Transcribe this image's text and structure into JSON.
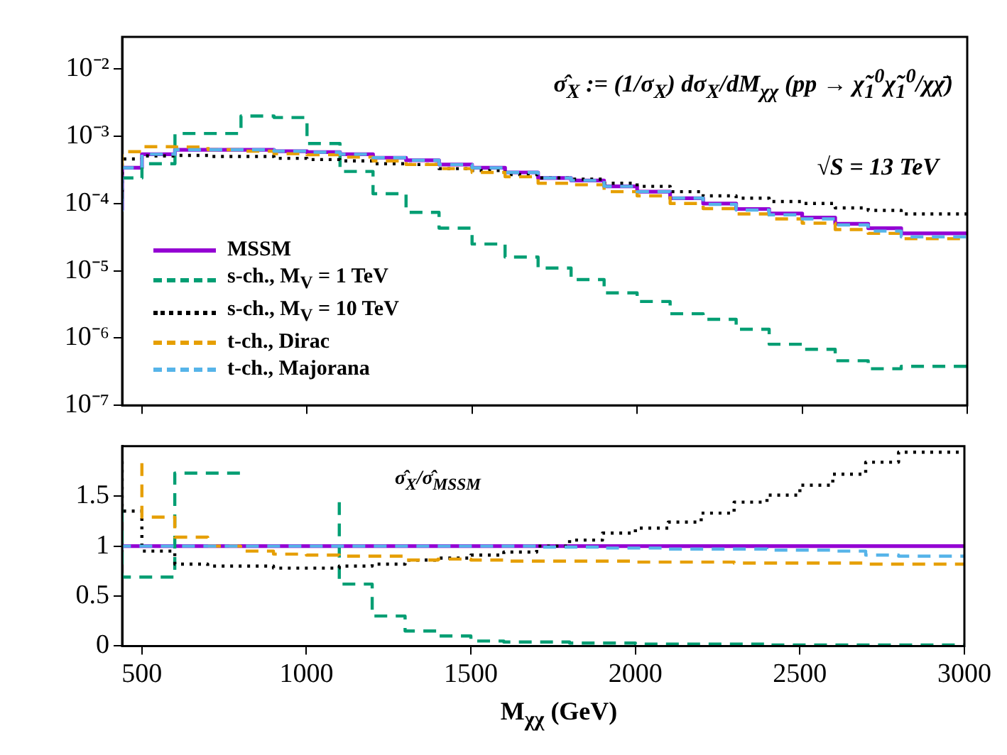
{
  "chart_data": [
    {
      "type": "step",
      "log": true,
      "legend": "bottom left",
      "tick_labels": "y",
      "annotations": [
        "σ̂$_{X}$ := (1/σ$_{X}$) dσ$_{X}$/dM$_{χχ}$ (pp → χ̃$_{1}$$^{0}$χ̃$_{1}$$^{0}$/χχ̄)",
        "√S = 13 TeV"
      ],
      "x": [
        440,
        500,
        600,
        700,
        800,
        900,
        1000,
        1100,
        1200,
        1300,
        1400,
        1500,
        1600,
        1700,
        1800,
        1900,
        2000,
        2100,
        2200,
        2300,
        2400,
        2500,
        2600,
        2700,
        2800,
        2900,
        3000
      ],
      "xlim": [
        440,
        3000
      ],
      "xticks": [
        500,
        1000,
        1500,
        2000,
        2500,
        3000
      ],
      "ylim": [
        1e-07,
        0.03
      ],
      "yticks": [
        {
          "value": 1e-07,
          "label": "10⁻⁷"
        },
        {
          "value": 1e-06,
          "label": "10⁻⁶"
        },
        {
          "value": 1e-05,
          "label": "10⁻⁵"
        },
        {
          "value": 0.0001,
          "label": "10⁻⁴"
        },
        {
          "value": 0.001,
          "label": "10⁻³"
        },
        {
          "value": 0.01,
          "label": "10⁻²"
        }
      ],
      "series": [
        {
          "name": "MSSM",
          "color": "#9400d3",
          "line_style": "solid",
          "values": [
            7.9e-05,
            0.00034,
            0.00054,
            0.00063,
            0.00063,
            0.00063,
            0.0006,
            0.00058,
            0.00054,
            0.00048,
            0.00044,
            0.00038,
            0.00034,
            0.00029,
            0.00024,
            0.00022,
            0.00018,
            0.00015,
            0.00012,
            0.0001,
            8.3e-05,
            7.1e-05,
            6.2e-05,
            5e-05,
            4.3e-05,
            3.6e-05,
            3.6e-05
          ]
        },
        {
          "name": "s-ch., M$_{V}$ = 1 TeV",
          "color": "#009e73",
          "line_style": "dashed",
          "values": [
            0.00011,
            0.00024,
            0.00039,
            0.0011,
            0.0011,
            0.002,
            0.0019,
            0.00078,
            0.0003,
            0.00014,
            7.4e-05,
            4.3e-05,
            2.5e-05,
            1.6e-05,
            1.1e-05,
            7.4e-06,
            4.7e-06,
            3.5e-06,
            2.3e-06,
            1.9e-06,
            1.35e-06,
            8.1e-07,
            6.8e-07,
            4.6e-07,
            3.5e-07,
            3.8e-07,
            3.8e-07
          ]
        },
        {
          "name": "s-ch., M$_{V}$ = 10 TeV",
          "color": "#000000",
          "line_style": "dotted",
          "values": [
            0.00015,
            0.00046,
            0.00051,
            0.00052,
            0.0005,
            0.0005,
            0.00047,
            0.00045,
            0.00043,
            0.00039,
            0.00038,
            0.00033,
            0.00031,
            0.00027,
            0.00024,
            0.00023,
            0.0002,
            0.00018,
            0.00015,
            0.00013,
            0.00012,
            0.000107,
            0.0001,
            8.6e-05,
            7.9e-05,
            7e-05,
            7e-05
          ]
        },
        {
          "name": "t-ch., Dirac",
          "color": "#e69f00",
          "line_style": "dashed",
          "values": [
            0.00035,
            0.00059,
            0.0007,
            0.00069,
            0.00063,
            0.0006,
            0.00055,
            0.00053,
            0.00049,
            0.00043,
            0.00038,
            0.00033,
            0.00029,
            0.00025,
            0.0002,
            0.00019,
            0.00015,
            0.00013,
            0.0001,
            8.4e-05,
            7e-05,
            5.9e-05,
            5.1e-05,
            4.1e-05,
            3.6e-05,
            3e-05,
            3e-05
          ]
        },
        {
          "name": "t-ch., Majorana",
          "color": "#56b4e9",
          "line_style": "dashed",
          "values": [
            7.6e-05,
            0.00034,
            0.00054,
            0.00063,
            0.00063,
            0.00063,
            0.0006,
            0.00058,
            0.00054,
            0.00048,
            0.00044,
            0.00038,
            0.00034,
            0.00029,
            0.00024,
            0.00022,
            0.00018,
            0.00015,
            0.00012,
            9.7e-05,
            8e-05,
            6.8e-05,
            5.9e-05,
            4.8e-05,
            3.9e-05,
            3.2e-05,
            3.2e-05
          ]
        }
      ]
    },
    {
      "type": "step",
      "xlabel": "M$_{χχ}$ (GeV)",
      "annotations": [
        "σ̂$_{X}$/σ̂$_{MSSM}$"
      ],
      "x": [
        440,
        500,
        600,
        700,
        800,
        900,
        1000,
        1100,
        1200,
        1300,
        1400,
        1500,
        1600,
        1700,
        1800,
        1900,
        2000,
        2100,
        2200,
        2300,
        2400,
        2500,
        2600,
        2700,
        2800,
        2900,
        3000
      ],
      "xlim": [
        440,
        3000
      ],
      "xticks": [
        500,
        1000,
        1500,
        2000,
        2500,
        3000
      ],
      "ylim": [
        0,
        2
      ],
      "yticks": [
        0,
        0.5,
        1,
        1.5
      ],
      "series": [
        {
          "color": "#9400d3",
          "line_style": "solid",
          "values": [
            1,
            1,
            1,
            1,
            1,
            1,
            1,
            1,
            1,
            1,
            1,
            1,
            1,
            1,
            1,
            1,
            1,
            1,
            1,
            1,
            1,
            1,
            1,
            1,
            1,
            1,
            1
          ]
        },
        {
          "color": "#009e73",
          "line_style": "dashed",
          "values": [
            1.37,
            0.69,
            0.69,
            1.73,
            1.73,
            null,
            null,
            1.44,
            0.62,
            0.3,
            0.15,
            0.1,
            0.05,
            0.04,
            0.04,
            0.03,
            0.03,
            0.02,
            0.02,
            0.02,
            0.02,
            0.01,
            0.01,
            0.01,
            0.01,
            0.01,
            0.01
          ]
        },
        {
          "color": "#000000",
          "line_style": "dotted",
          "values": [
            1.85,
            1.35,
            0.95,
            0.82,
            0.8,
            0.8,
            0.78,
            0.78,
            0.8,
            0.82,
            0.86,
            0.88,
            0.91,
            0.94,
            1.0,
            1.06,
            1.13,
            1.18,
            1.24,
            1.33,
            1.44,
            1.51,
            1.61,
            1.72,
            1.84,
            1.94,
            1.94
          ]
        },
        {
          "color": "#e69f00",
          "line_style": "dashed",
          "values": [
            null,
            1.83,
            1.29,
            1.09,
            1.0,
            0.95,
            0.92,
            0.91,
            0.9,
            0.9,
            0.86,
            0.87,
            0.86,
            0.85,
            0.85,
            0.85,
            0.85,
            0.84,
            0.84,
            0.84,
            0.83,
            0.83,
            0.83,
            0.83,
            0.82,
            0.82,
            0.82
          ]
        },
        {
          "color": "#56b4e9",
          "line_style": "dashed",
          "values": [
            0.96,
            1,
            1,
            1,
            1,
            1,
            1,
            1,
            1,
            1,
            1,
            1,
            1,
            1,
            0.99,
            0.99,
            0.98,
            0.98,
            0.97,
            0.97,
            0.97,
            0.96,
            0.96,
            0.95,
            0.91,
            0.9,
            0.9
          ]
        }
      ]
    }
  ]
}
